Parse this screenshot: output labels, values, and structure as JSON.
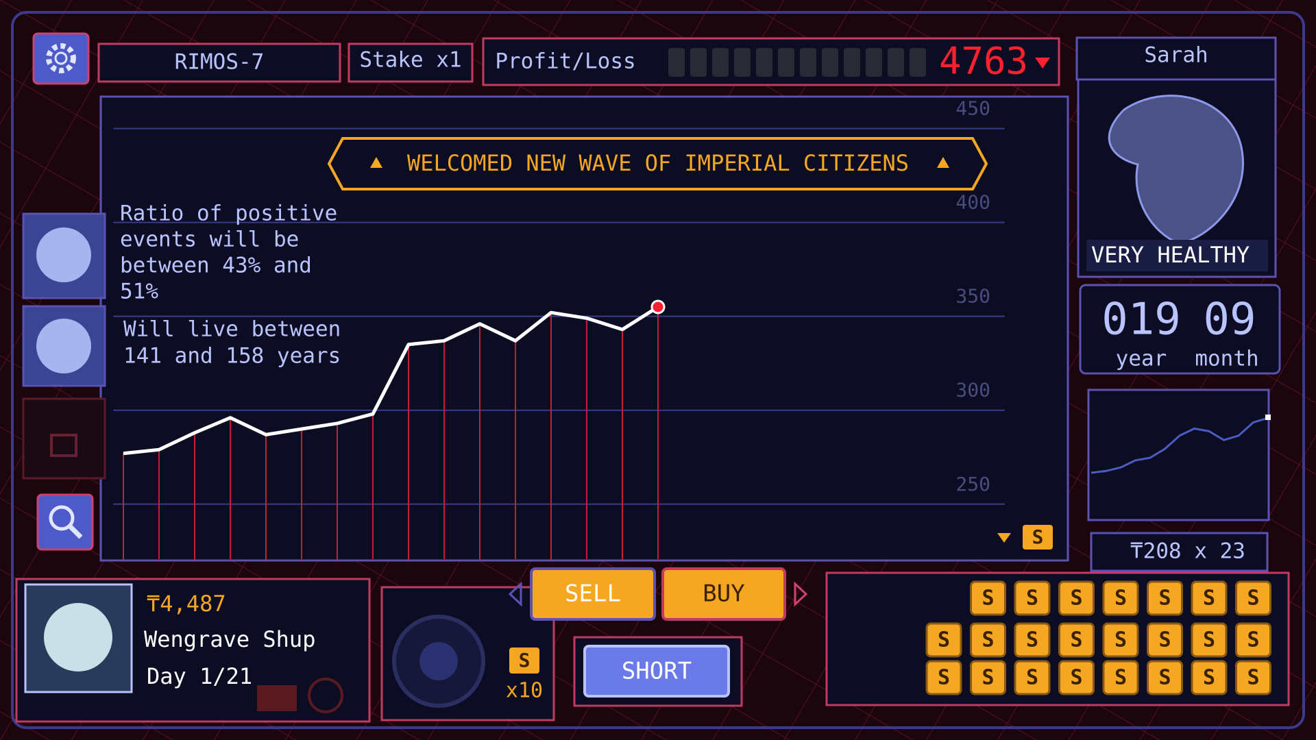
{
  "header": {
    "station": "RIMOS-7",
    "stake": "Stake x1",
    "profit_loss_label": "Profit/Loss",
    "profit_loss": 4763
  },
  "citizen": {
    "name": "Sarah",
    "health": "VERY HEALTHY",
    "age_years": "019",
    "age_months": "09",
    "year_label": "year",
    "month_label": "month",
    "price": "₸208 x 23",
    "trend": [
      38,
      40,
      44,
      52,
      55,
      65,
      80,
      88,
      85,
      75,
      80,
      95,
      100
    ]
  },
  "price_chart": {
    "type": "line",
    "banner": "WELCOMED NEW WAVE OF IMPERIAL CITIZENS",
    "note_ratio": [
      "Ratio of positive",
      "events will be",
      "between 43% and",
      "51%"
    ],
    "note_life": [
      "Will live between",
      "141 and 158 years"
    ],
    "values": [
      277,
      279,
      288,
      296,
      287,
      290,
      293,
      298,
      335,
      337,
      346,
      337,
      352,
      349,
      343,
      355
    ],
    "ylim": [
      220,
      467
    ],
    "yticks": [
      250,
      300,
      350,
      400,
      450
    ]
  },
  "player": {
    "balance": "₸4,487",
    "name": "Wengrave Shup",
    "day": "Day 1/21"
  },
  "controls": {
    "sell": "SELL",
    "buy": "BUY",
    "short": "SHORT",
    "multiplier": "x10",
    "coin": "S"
  },
  "wallet": {
    "coins": [
      "S",
      "S",
      "S",
      "S",
      "S",
      "S",
      "S",
      "S",
      "S",
      "S",
      "S",
      "S",
      "S",
      "S",
      "S",
      "S",
      "S",
      "S",
      "S",
      "S",
      "S",
      "S",
      "S"
    ]
  }
}
